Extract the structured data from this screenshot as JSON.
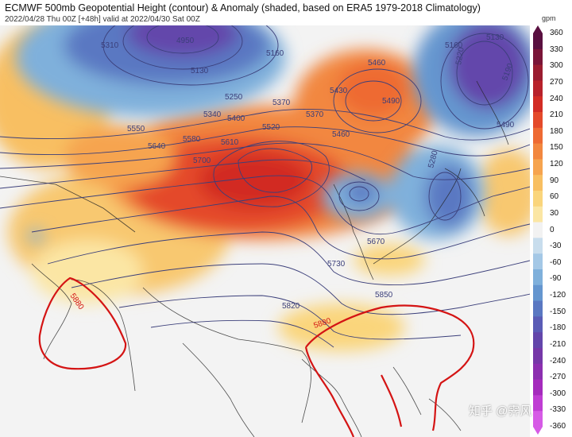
{
  "header": {
    "title": "ECMWF 500mb Geopotential Height (contour) & Anomaly (shaded, based on ERA5 1979-2018 Climatology)",
    "subtitle": "2022/04/28 Thu 00Z [+48h] valid at 2022/04/30 Sat 00Z"
  },
  "colorbar": {
    "unit": "gpm",
    "ticks": [
      "360",
      "330",
      "300",
      "270",
      "240",
      "210",
      "180",
      "150",
      "120",
      "90",
      "60",
      "30",
      "0",
      "-30",
      "-60",
      "-90",
      "-120",
      "-150",
      "-180",
      "-210",
      "-240",
      "-270",
      "-300",
      "-330",
      "-360"
    ],
    "colors_top_to_bottom": [
      "#5a1040",
      "#7a1538",
      "#9a1c30",
      "#b8222b",
      "#d22c24",
      "#e44a2a",
      "#ee6a33",
      "#f2873f",
      "#f6a44f",
      "#f8bf62",
      "#fad57c",
      "#fbe6a4",
      "#f2f2f2",
      "#c8dded",
      "#a4c8e6",
      "#7fb0db",
      "#6596cf",
      "#5a78c2",
      "#5a5cb6",
      "#6346ab",
      "#7638a8",
      "#8c2fb0",
      "#a52bbd",
      "#bf3dd3",
      "#d65be6"
    ]
  },
  "contours": {
    "labels": [
      "4950",
      "5130",
      "5160",
      "5250",
      "5310",
      "5340",
      "5370",
      "5400",
      "5430",
      "5460",
      "5490",
      "5520",
      "5550",
      "5580",
      "5610",
      "5640",
      "5700",
      "5730",
      "5820",
      "5850",
      "5880",
      "5670",
      "5160",
      "5130",
      "5190",
      "5220",
      "5280",
      "5370",
      "5460",
      "5490"
    ],
    "ridge_label": "5880"
  },
  "watermark": "知乎 @霁风"
}
